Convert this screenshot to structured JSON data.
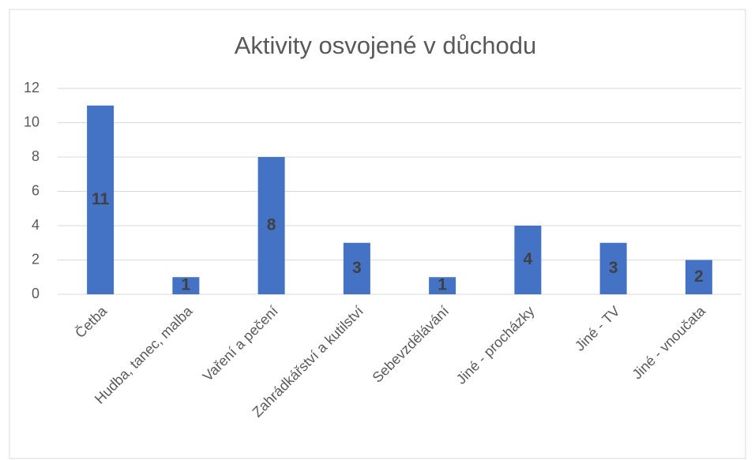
{
  "chart_data": {
    "type": "bar",
    "title": "Aktivity osvojené v důchodu",
    "categories": [
      "Četba",
      "Hudba, tanec, malba",
      "Vaření a pečení",
      "Zahrádkářství a kutilství",
      "Sebevzdělávání",
      "Jiné - procházky",
      "Jiné - TV",
      "Jiné - vnoučata"
    ],
    "values": [
      11,
      1,
      8,
      3,
      1,
      4,
      3,
      2
    ],
    "color": "#4472c4",
    "ylim": [
      0,
      12
    ],
    "yticks": [
      0,
      2,
      4,
      6,
      8,
      10,
      12
    ],
    "grid": true,
    "data_labels": true
  }
}
